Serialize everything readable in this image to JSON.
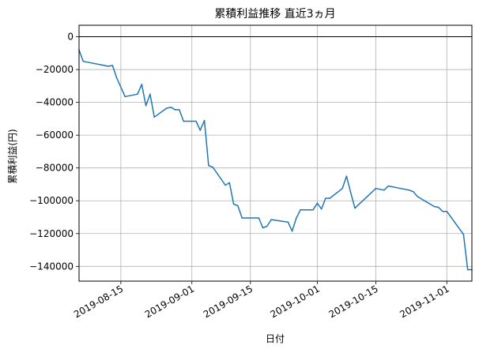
{
  "chart_data": {
    "type": "line",
    "title": "累積利益推移  直近3ヵ月",
    "xlabel": "日付",
    "ylabel": "累積利益(円)",
    "xlim": [
      "2019-08-05",
      "2019-11-07"
    ],
    "ylim": [
      -149000,
      7000
    ],
    "grid": true,
    "reference_line": 0,
    "line_color": "#1f77b4",
    "x_ticks": [
      "2019-08-15",
      "2019-09-01",
      "2019-09-15",
      "2019-10-01",
      "2019-10-15",
      "2019-11-01"
    ],
    "y_ticks": [
      0,
      -20000,
      -40000,
      -60000,
      -80000,
      -100000,
      -120000,
      -140000
    ],
    "y_tick_labels": [
      "0",
      "−20000",
      "−40000",
      "−60000",
      "−80000",
      "−100000",
      "−120000",
      "−140000"
    ],
    "series": [
      {
        "x": [
          "2019-08-05",
          "2019-08-06",
          "2019-08-12",
          "2019-08-13",
          "2019-08-14",
          "2019-08-16",
          "2019-08-19",
          "2019-08-20",
          "2019-08-21",
          "2019-08-22",
          "2019-08-23",
          "2019-08-26",
          "2019-08-27",
          "2019-08-28",
          "2019-08-29",
          "2019-08-30",
          "2019-09-02",
          "2019-09-03",
          "2019-09-04",
          "2019-09-05",
          "2019-09-06",
          "2019-09-09",
          "2019-09-10",
          "2019-09-11",
          "2019-09-12",
          "2019-09-13",
          "2019-09-17",
          "2019-09-18",
          "2019-09-19",
          "2019-09-20",
          "2019-09-24",
          "2019-09-25",
          "2019-09-26",
          "2019-09-27",
          "2019-09-30",
          "2019-10-01",
          "2019-10-02",
          "2019-10-03",
          "2019-10-04",
          "2019-10-07",
          "2019-10-08",
          "2019-10-09",
          "2019-10-10",
          "2019-10-15",
          "2019-10-16",
          "2019-10-17",
          "2019-10-18",
          "2019-10-21",
          "2019-10-23",
          "2019-10-24",
          "2019-10-25",
          "2019-10-28",
          "2019-10-29",
          "2019-10-30",
          "2019-10-31",
          "2019-11-01",
          "2019-11-05",
          "2019-11-06",
          "2019-11-07"
        ],
        "values": [
          -8000,
          -15000,
          -18000,
          -17500,
          -25000,
          -36500,
          -35000,
          -29000,
          -42000,
          -35000,
          -49000,
          -43500,
          -43000,
          -44500,
          -44500,
          -51500,
          -51500,
          -57000,
          -51000,
          -78500,
          -79500,
          -90500,
          -89000,
          -102000,
          -103000,
          -110500,
          -110500,
          -116500,
          -115500,
          -111500,
          -113000,
          -118500,
          -110500,
          -105500,
          -105500,
          -101500,
          -105000,
          -98500,
          -98500,
          -92500,
          -85000,
          -95000,
          -104500,
          -92500,
          -93000,
          -93500,
          -91000,
          -92500,
          -93500,
          -94500,
          -97500,
          -102000,
          -103500,
          -104000,
          -106500,
          -106500,
          -120500,
          -142000,
          -142000
        ]
      }
    ]
  }
}
